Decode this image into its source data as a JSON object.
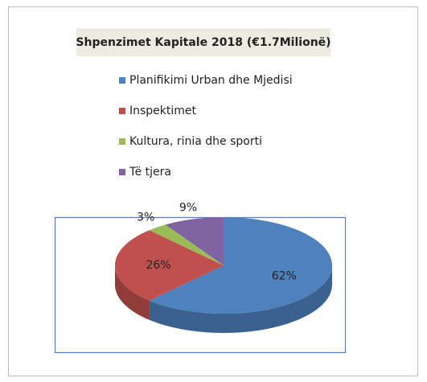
{
  "chart_data": {
    "type": "pie",
    "title": "Shpenzimet Kapitale 2018 (€1.7Milionë)",
    "categories": [
      "Planifikimi Urban dhe Mjedisi",
      "Inspektimet",
      "Kultura, rinia dhe sporti",
      "Të tjera"
    ],
    "values": [
      62,
      26,
      3,
      9
    ],
    "value_labels": [
      "62%",
      "26%",
      "3%",
      "9%"
    ],
    "colors": [
      "#4f81bd",
      "#c0504d",
      "#9bbb59",
      "#8064a2"
    ]
  }
}
